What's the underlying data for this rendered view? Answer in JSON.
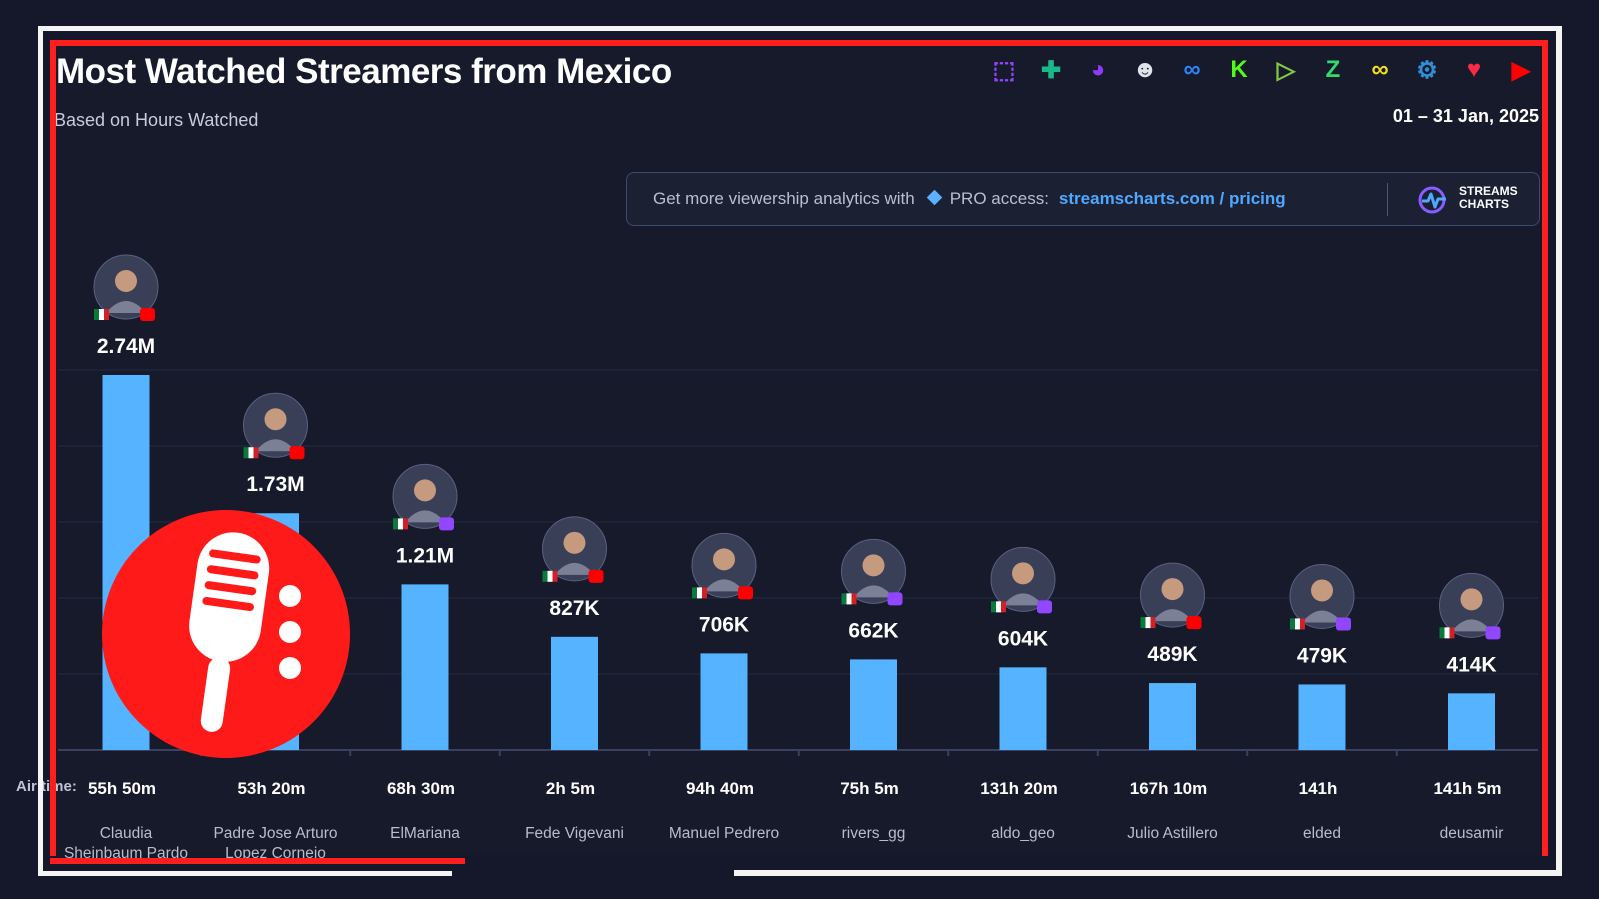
{
  "header": {
    "title": "Most Watched Streamers from Mexico",
    "subtitle": "Based on Hours Watched",
    "date_range": "01 – 31 Jan, 2025"
  },
  "platforms": [
    {
      "icon": "twitch-icon",
      "glyph": "⬚",
      "color": "#9146ff"
    },
    {
      "icon": "trovo-icon",
      "glyph": "✚",
      "color": "#1ab98a"
    },
    {
      "icon": "nimo-icon",
      "glyph": "◕",
      "color": "#8c3cf6"
    },
    {
      "icon": "ghost-platform-icon",
      "glyph": "☻",
      "color": "#dfe3ea"
    },
    {
      "icon": "infinity-blue-icon",
      "glyph": "∞",
      "color": "#2a84ff"
    },
    {
      "icon": "kick-icon",
      "glyph": "K",
      "color": "#53fc18"
    },
    {
      "icon": "rumble-icon",
      "glyph": "▷",
      "color": "#85c742"
    },
    {
      "icon": "zhanqi-icon",
      "glyph": "Z",
      "color": "#2fdc6c"
    },
    {
      "icon": "infinity-yellow-icon",
      "glyph": "∞",
      "color": "#f3e21b"
    },
    {
      "icon": "steam-icon",
      "glyph": "⚙",
      "color": "#2f8fd6"
    },
    {
      "icon": "heart-icon",
      "glyph": "♥",
      "color": "#ff2a44"
    },
    {
      "icon": "youtube-icon",
      "glyph": "▶",
      "color": "#ff0000"
    }
  ],
  "promo": {
    "text": "Get more viewership analytics with",
    "pro": "PRO access:",
    "link": "streamscharts.com / pricing",
    "logo": "STREAMS\nCHARTS"
  },
  "airtime_prefix": "Air time:",
  "chart_data": {
    "type": "bar",
    "title": "Most Watched Streamers from Mexico",
    "subtitle": "Based on Hours Watched",
    "ylabel": "",
    "categories": [
      "Claudia Sheinbaum Pardo",
      "Padre Jose Arturo Lopez Cornejo",
      "ElMariana",
      "Fede Vigevani",
      "Manuel Pedrero",
      "rivers_gg",
      "aldo_geo",
      "Julio Astillero",
      "elded",
      "deusamir"
    ],
    "values": [
      2740000,
      1730000,
      1210000,
      827000,
      706000,
      662000,
      604000,
      489000,
      479000,
      414000
    ],
    "value_labels": [
      "2.74M",
      "1.73M",
      "1.21M",
      "827K",
      "706K",
      "662K",
      "604K",
      "489K",
      "479K",
      "414K"
    ],
    "air_time": [
      "55h 50m",
      "53h 20m",
      "68h 30m",
      "2h 5m",
      "94h 40m",
      "75h 5m",
      "131h 20m",
      "167h 10m",
      "141h",
      "141h 5m"
    ],
    "platform": [
      "youtube",
      "youtube",
      "twitch",
      "youtube",
      "youtube",
      "twitch",
      "twitch",
      "youtube",
      "twitch",
      "twitch"
    ],
    "name_lines": [
      [
        "Claudia",
        "Sheinbaum Pardo"
      ],
      [
        "Padre Jose Arturo",
        "Lopez Cornejo"
      ],
      [
        "ElMariana"
      ],
      [
        "Fede Vigevani"
      ],
      [
        "Manuel Pedrero"
      ],
      [
        "rivers_gg"
      ],
      [
        "aldo_geo"
      ],
      [
        "Julio Astillero"
      ],
      [
        "elded"
      ],
      [
        "deusamir"
      ]
    ],
    "ylim": [
      0,
      2740000
    ],
    "grid": true,
    "bar_color": "#56b3ff",
    "legend": "none"
  },
  "colors": {
    "accent": "#4fa8ff",
    "frame_red": "#ff1f1f",
    "bar": "#56b3ff"
  }
}
